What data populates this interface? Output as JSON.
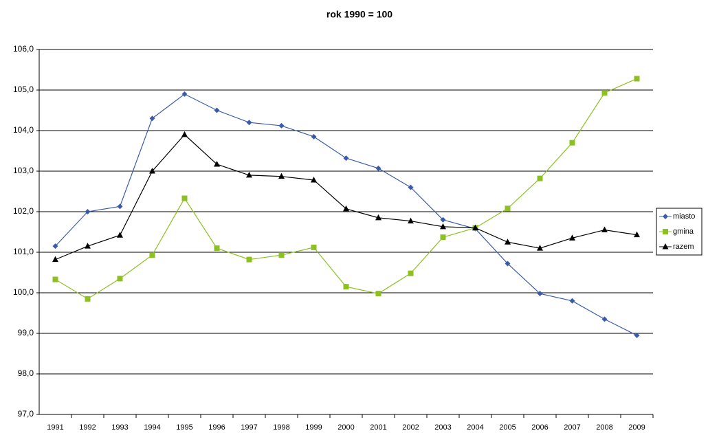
{
  "chart_data": {
    "type": "line",
    "title": "rok 1990 = 100",
    "categories": [
      "1991",
      "1992",
      "1993",
      "1994",
      "1995",
      "1996",
      "1997",
      "1998",
      "1999",
      "2000",
      "2001",
      "2002",
      "2003",
      "2004",
      "2005",
      "2006",
      "2007",
      "2008",
      "2009"
    ],
    "series": [
      {
        "name": "miasto",
        "color": "#3b5ba8",
        "marker": "diamond",
        "values": [
          101.15,
          102.0,
          102.13,
          104.3,
          104.9,
          104.5,
          104.2,
          104.12,
          103.85,
          103.32,
          103.07,
          102.6,
          101.8,
          101.58,
          100.72,
          99.98,
          99.8,
          99.35,
          98.95
        ]
      },
      {
        "name": "gmina",
        "color": "#8dc021",
        "marker": "square",
        "values": [
          100.33,
          99.85,
          100.35,
          100.93,
          102.33,
          101.1,
          100.82,
          100.93,
          101.12,
          100.15,
          99.98,
          100.48,
          101.37,
          101.6,
          102.08,
          102.82,
          103.7,
          104.93,
          105.28
        ]
      },
      {
        "name": "razem",
        "color": "#000000",
        "marker": "triangle",
        "values": [
          100.82,
          101.15,
          101.42,
          103.0,
          103.9,
          103.17,
          102.9,
          102.87,
          102.78,
          102.07,
          101.85,
          101.77,
          101.63,
          101.6,
          101.25,
          101.1,
          101.35,
          101.55,
          101.43
        ]
      }
    ],
    "ylim": [
      97,
      106
    ],
    "yticks": [
      {
        "value": 97,
        "label": "97,0"
      },
      {
        "value": 98,
        "label": "98,0"
      },
      {
        "value": 99,
        "label": "99,0"
      },
      {
        "value": 100,
        "label": "100,0"
      },
      {
        "value": 101,
        "label": "101,0"
      },
      {
        "value": 102,
        "label": "102,0"
      },
      {
        "value": 103,
        "label": "103,0"
      },
      {
        "value": 104,
        "label": "104,0"
      },
      {
        "value": 105,
        "label": "105,0"
      },
      {
        "value": 106,
        "label": "106,0"
      }
    ],
    "grid": true,
    "legend": "right"
  }
}
